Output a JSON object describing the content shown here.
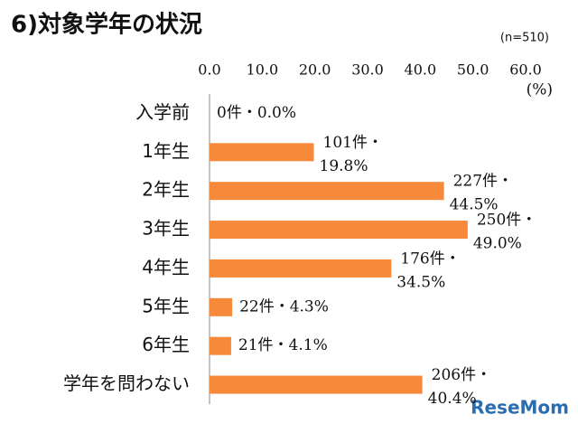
{
  "chart_data": {
    "type": "hbar",
    "title": "6)対象学年の状況",
    "subtitle": "(n=510)",
    "x_unit": "(%)",
    "watermark": "ReseMom",
    "categories": [
      "入学前",
      "1年生",
      "2年生",
      "3年生",
      "4年生",
      "5年生",
      "6年生",
      "学年を問わない"
    ],
    "values": [
      0.0,
      19.8,
      44.5,
      49.0,
      34.5,
      4.3,
      4.1,
      40.4
    ],
    "value_labels": [
      [
        "0件・0.0%"
      ],
      [
        "101件・",
        "19.8%"
      ],
      [
        "227件・",
        "44.5%"
      ],
      [
        "250件・",
        "49.0%"
      ],
      [
        "176件・",
        "34.5%"
      ],
      [
        "22件・4.3%"
      ],
      [
        "21件・4.1%"
      ],
      [
        "206件・",
        "40.4%"
      ]
    ],
    "color": "#f7893a",
    "xlim": [
      0,
      60
    ],
    "xticks": [
      {
        "value": 0,
        "label": "0.0"
      },
      {
        "value": 10,
        "label": "10.0"
      },
      {
        "value": 20,
        "label": "20.0"
      },
      {
        "value": 30,
        "label": "30.0"
      },
      {
        "value": 40,
        "label": "40.0"
      },
      {
        "value": 50,
        "label": "50.0"
      },
      {
        "value": 60,
        "label": "60.0"
      }
    ],
    "grid": false
  }
}
